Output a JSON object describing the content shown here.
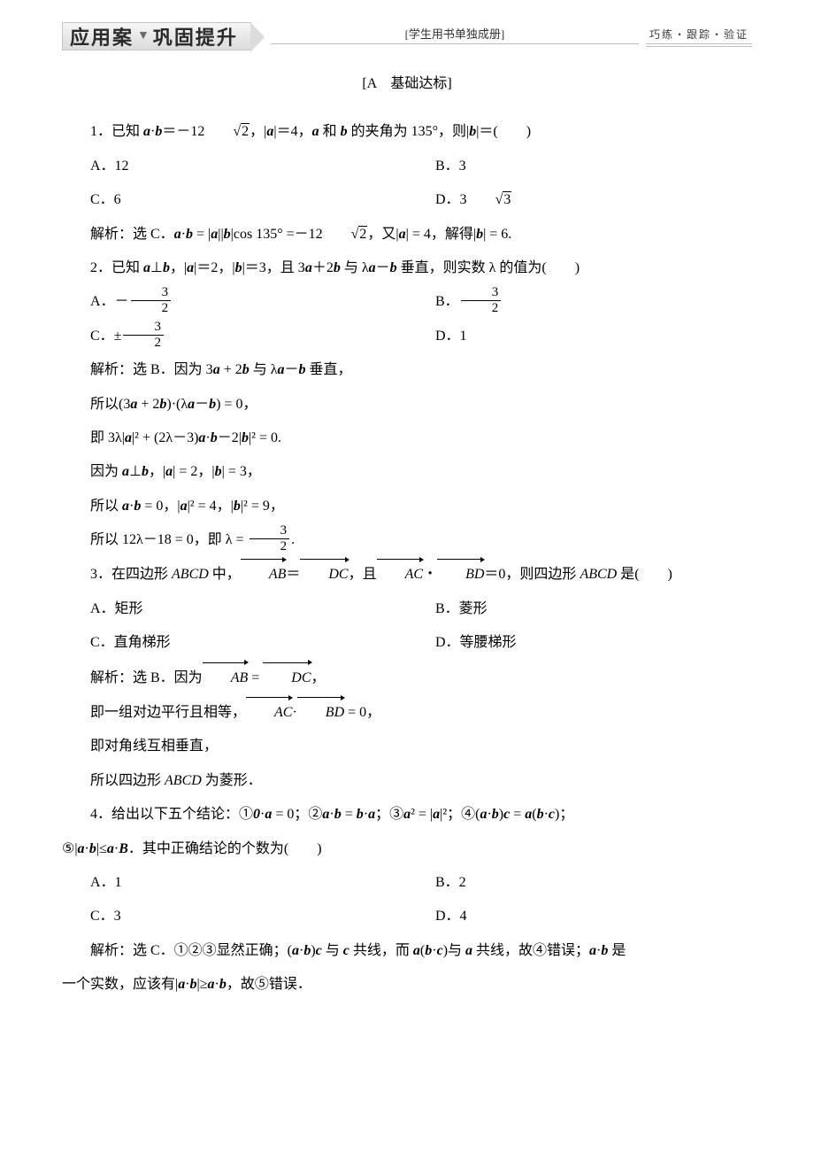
{
  "banner": {
    "title_left": "应用案",
    "title_right": "巩固提升",
    "mid_note": "[学生用书单独成册]",
    "right_note": "巧练・跟踪・验证"
  },
  "section_head": "[A　基础达标]",
  "q1": {
    "stem_pre": "1．已知 ",
    "stem_mid1": "＝－12",
    "stem_mid2": "，|",
    "stem_mid3": "|＝4，",
    "stem_mid4": " 和 ",
    "stem_mid5": " 的夹角为 135°，则|",
    "stem_mid6": "|＝(　　)",
    "optA": "A．12",
    "optB": "B．3",
    "optC": "C．6",
    "optD_pre": "D．3",
    "sol_pre": "解析：选 C．",
    "sol_mid1": " = |",
    "sol_mid2": "||",
    "sol_mid3": "|cos 135° =－12",
    "sol_mid4": "，又|",
    "sol_mid5": "| = 4，解得|",
    "sol_mid6": "| = 6."
  },
  "q2": {
    "stem_pre": "2．已知 ",
    "stem_mid1": "⊥",
    "stem_mid2": "，|",
    "stem_mid3": "|＝2，|",
    "stem_mid4": "|＝3，且 3",
    "stem_mid5": "＋2",
    "stem_mid6": " 与 λ",
    "stem_mid7": "－",
    "stem_mid8": " 垂直，则实数 λ 的值为(　　)",
    "optA_pre": "A．－",
    "optB_pre": "B．",
    "optC_pre": "C．±",
    "optD": "D．1",
    "sol1_pre": "解析：选 B．因为 3",
    "sol1_mid1": " + 2",
    "sol1_mid2": " 与 λ",
    "sol1_mid3": "－",
    "sol1_mid4": " 垂直，",
    "sol2_pre": "所以(3",
    "sol2_mid1": " + 2",
    "sol2_mid2": ")·(λ",
    "sol2_mid3": "－",
    "sol2_mid4": ") = 0，",
    "sol3_pre": "即 3λ|",
    "sol3_mid1": "|² + (2λ－3)",
    "sol3_mid2": "－2|",
    "sol3_mid3": "|² = 0.",
    "sol4_pre": "因为 ",
    "sol4_mid1": "⊥",
    "sol4_mid2": "，|",
    "sol4_mid3": "| = 2，|",
    "sol4_mid4": "| = 3，",
    "sol5_pre": "所以 ",
    "sol5_mid1": " = 0，|",
    "sol5_mid2": "|² = 4，|",
    "sol5_mid3": "|² = 9，",
    "sol6_pre": "所以 12λ－18 = 0，即 λ = ",
    "sol6_post": "."
  },
  "q3": {
    "stem_pre": "3．在四边形 ",
    "stem_mid1": " 中，",
    "stem_mid2": "＝",
    "stem_mid3": "，且",
    "stem_mid4": "・",
    "stem_mid5": "＝0，则四边形 ",
    "stem_mid6": " 是(　　)",
    "optA": "A．矩形",
    "optB": "B．菱形",
    "optC": "C．直角梯形",
    "optD": "D．等腰梯形",
    "sol1_pre": "解析：选 B．因为",
    "sol1_mid1": " = ",
    "sol1_post": "，",
    "sol2_pre": "即一组对边平行且相等，",
    "sol2_mid": "·",
    "sol2_post": " = 0，",
    "sol3": "即对角线互相垂直，",
    "sol4_pre": "所以四边形 ",
    "sol4_post": " 为菱形．"
  },
  "q4": {
    "stem_pre": "4．给出以下五个结论：①",
    "stem_mid1": "·",
    "stem_mid2": " = 0；②",
    "stem_mid3": "·",
    "stem_mid4": " = ",
    "stem_mid5": "·",
    "stem_mid6": "；③",
    "stem_mid7": "² = |",
    "stem_mid8": "|²；④(",
    "stem_mid9": "·",
    "stem_mid10": ")",
    "stem_mid11": " = ",
    "stem_mid12": "(",
    "stem_mid13": "·",
    "stem_mid14": ")；",
    "stem2_pre": "⑤|",
    "stem2_mid1": "·",
    "stem2_mid2": "|≤",
    "stem2_mid3": "·",
    "stem2_mid4": "．其中正确结论的个数为(　　)",
    "optA": "A．1",
    "optB": "B．2",
    "optC": "C．3",
    "optD": "D．4",
    "sol_pre": "解析：选 C．①②③显然正确；(",
    "sol_mid1": "·",
    "sol_mid2": ")",
    "sol_mid3": " 与 ",
    "sol_mid4": " 共线，而 ",
    "sol_mid5": "(",
    "sol_mid6": "·",
    "sol_mid7": ")与 ",
    "sol_mid8": " 共线，故④错误；",
    "sol_mid9": "·",
    "sol_mid10": " 是",
    "sol2_pre": "一个实数，应该有|",
    "sol2_mid1": "·",
    "sol2_mid2": "|≥",
    "sol2_mid3": "·",
    "sol2_mid4": "，故⑤错误．"
  },
  "sym": {
    "a": "a",
    "b": "b",
    "c": "c",
    "B": "B",
    "zero": "0",
    "ABCD": "ABCD",
    "AB": "AB",
    "DC": "DC",
    "AC": "AC",
    "BD": "BD",
    "two": "2",
    "three": "3"
  }
}
